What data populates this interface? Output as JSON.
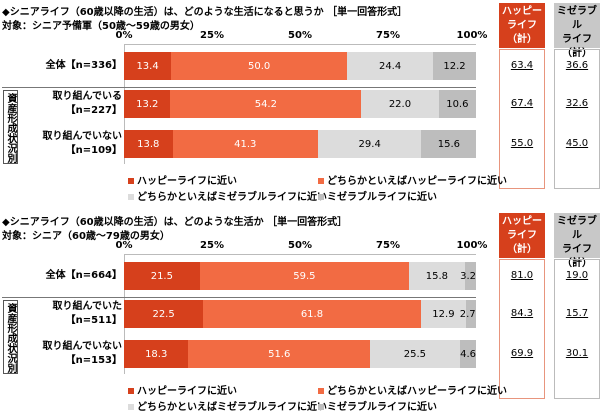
{
  "colors": {
    "happy": "#D6401C",
    "rather_happy": "#F26B43",
    "rather_miserable": "#DCDCDC",
    "miserable": "#BDBDBD"
  },
  "chart_data": [
    {
      "type": "bar",
      "stacked": true,
      "orientation": "horizontal",
      "title": "◆シニアライフ（60歳以降の生活）は、どのような生活になると思うか ［単一回答形式］",
      "subtitle": "対象：シニア予備軍（50歳～59歳の男女）",
      "ticks": [
        "0%",
        "25%",
        "50%",
        "75%",
        "100%"
      ],
      "xlim": [
        0,
        100
      ],
      "group_label": "資産形成状況別",
      "categories": [
        [
          "全体【n=336】"
        ],
        [
          "取り組んでいる",
          "【n=227】"
        ],
        [
          "取り組んでいない",
          "【n=109】"
        ]
      ],
      "series": [
        {
          "name": "ハッピーライフに近い",
          "values": [
            13.4,
            13.2,
            13.8
          ]
        },
        {
          "name": "どちらかといえばハッピーライフに近い",
          "values": [
            50.0,
            54.2,
            41.3
          ]
        },
        {
          "name": "どちらかといえばミゼラブルライフに近い",
          "values": [
            24.4,
            22.0,
            29.4
          ]
        },
        {
          "name": "ミゼラブルライフに近い",
          "values": [
            12.2,
            10.6,
            15.6
          ]
        }
      ],
      "summary": [
        {
          "header": [
            "ハッピー",
            "ライフ",
            "（計）"
          ],
          "values": [
            "63.4",
            "67.4",
            "55.0"
          ]
        },
        {
          "header": [
            "ミゼラブル",
            "ライフ",
            "（計）"
          ],
          "values": [
            "36.6",
            "32.6",
            "45.0"
          ]
        }
      ]
    },
    {
      "type": "bar",
      "stacked": true,
      "orientation": "horizontal",
      "title": "◆シニアライフ（60歳以降の生活）は、どのような生活か ［単一回答形式］",
      "subtitle": "対象：シニア（60歳～79歳の男女）",
      "ticks": [
        "0%",
        "25%",
        "50%",
        "75%",
        "100%"
      ],
      "xlim": [
        0,
        100
      ],
      "group_label": "資産形成状況別",
      "categories": [
        [
          "全体【n=664】"
        ],
        [
          "取り組んでいた",
          "【n=511】"
        ],
        [
          "取り組んでいない",
          "【n=153】"
        ]
      ],
      "series": [
        {
          "name": "ハッピーライフに近い",
          "values": [
            21.5,
            22.5,
            18.3
          ]
        },
        {
          "name": "どちらかといえばハッピーライフに近い",
          "values": [
            59.5,
            61.8,
            51.6
          ]
        },
        {
          "name": "どちらかといえばミゼラブルライフに近い",
          "values": [
            15.8,
            12.9,
            25.5
          ]
        },
        {
          "name": "ミゼラブルライフに近い",
          "values": [
            3.2,
            2.7,
            4.6
          ]
        }
      ],
      "summary": [
        {
          "header": [
            "ハッピー",
            "ライフ",
            "（計）"
          ],
          "values": [
            "81.0",
            "84.3",
            "69.9"
          ]
        },
        {
          "header": [
            "ミゼラブル",
            "ライフ",
            "（計）"
          ],
          "values": [
            "19.0",
            "15.7",
            "30.1"
          ]
        }
      ]
    }
  ]
}
